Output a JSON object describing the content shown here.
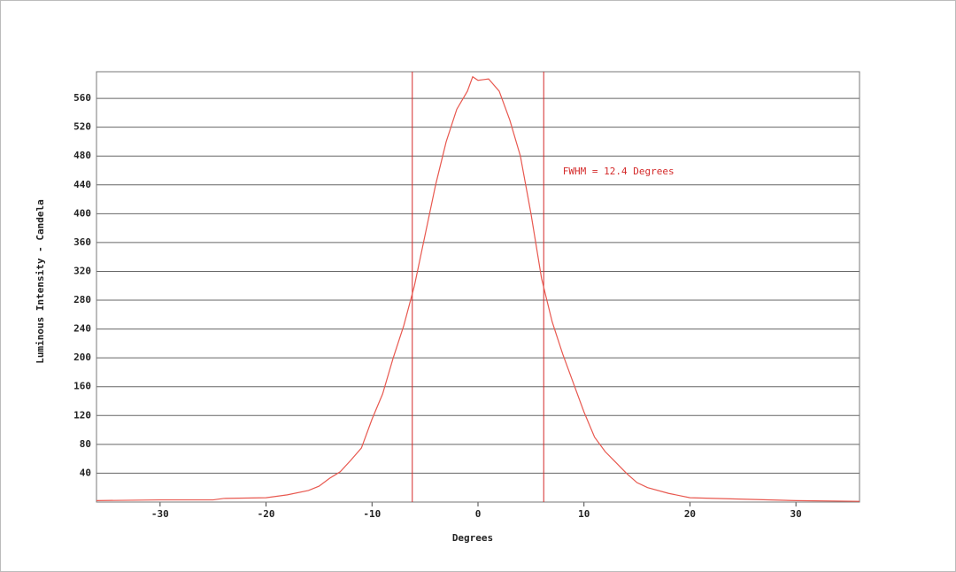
{
  "chart_data": {
    "type": "line",
    "x_label": "Degrees",
    "y_label": "Luminous Intensity - Candela",
    "annotation": {
      "text": "FWHM = 12.4 Degrees",
      "x": 8,
      "y": 458
    },
    "xlim": [
      -36,
      36
    ],
    "ylim": [
      0,
      597
    ],
    "xticks": [
      -30,
      -20,
      -10,
      0,
      10,
      20,
      30
    ],
    "yticks": [
      40,
      80,
      120,
      160,
      200,
      240,
      280,
      320,
      360,
      400,
      440,
      480,
      520,
      560
    ],
    "grid": true,
    "vlines": [
      -6.2,
      6.2
    ],
    "marker_color": "#d42a2a",
    "x": [
      -36,
      -30,
      -25,
      -24,
      -20,
      -18,
      -16,
      -15,
      -14,
      -13,
      -12,
      -11,
      -10,
      -9,
      -8,
      -7,
      -6,
      -5,
      -4,
      -3,
      -2,
      -1,
      -0.5,
      0,
      0.5,
      1,
      2,
      3,
      4,
      5,
      6,
      7,
      8,
      9,
      10,
      11,
      12,
      13,
      14,
      15,
      16,
      18,
      20,
      25,
      30,
      36
    ],
    "series": [
      {
        "color": "#e8584f",
        "values": [
          2,
          3,
          3,
          5,
          6,
          10,
          16,
          22,
          33,
          42,
          58,
          75,
          115,
          150,
          200,
          245,
          300,
          370,
          440,
          500,
          545,
          570,
          590,
          585,
          586,
          587,
          570,
          530,
          480,
          400,
          310,
          250,
          205,
          165,
          125,
          90,
          70,
          55,
          40,
          27,
          20,
          12,
          6,
          4,
          2,
          1
        ]
      }
    ]
  }
}
